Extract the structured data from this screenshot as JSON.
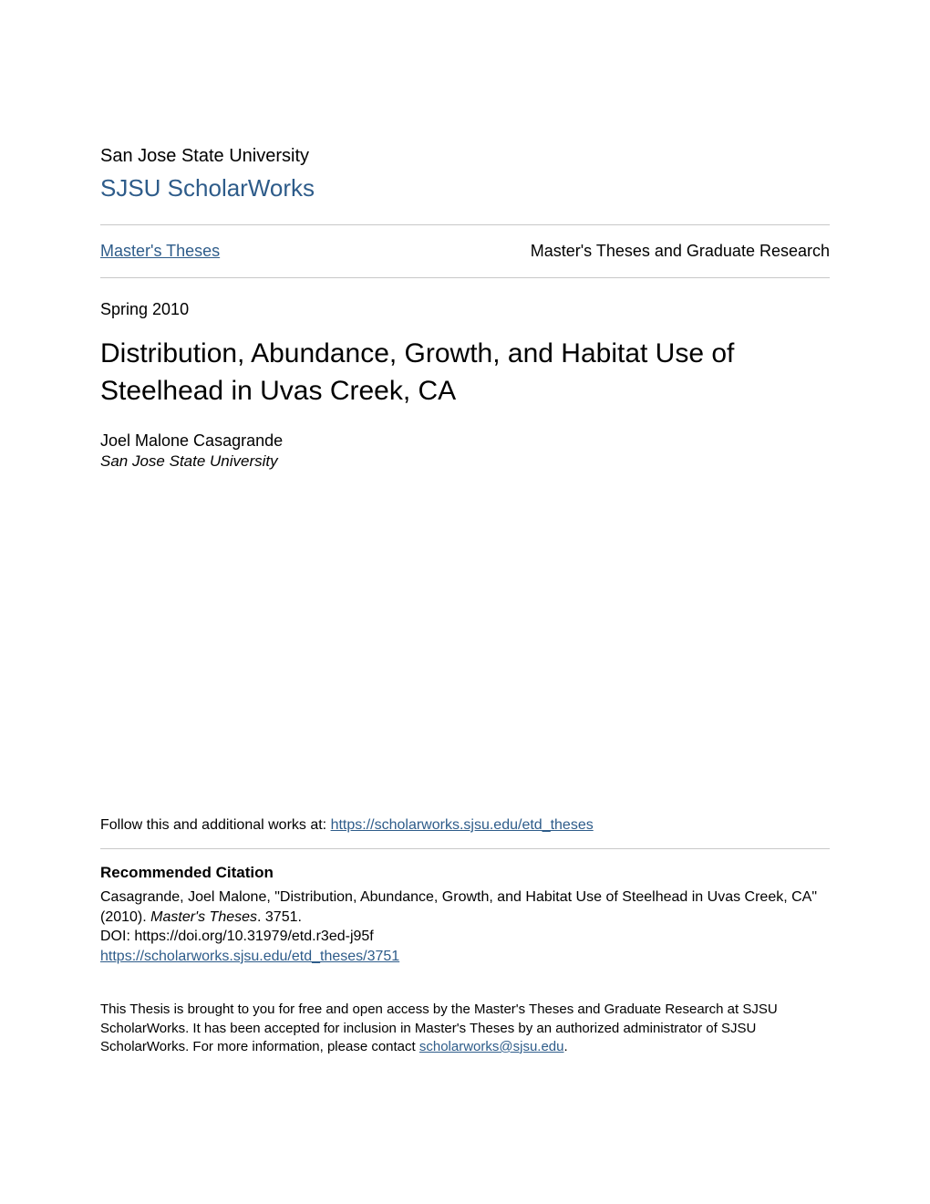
{
  "header": {
    "university": "San Jose State University",
    "repository": "SJSU ScholarWorks"
  },
  "breadcrumb": {
    "left": "Master's Theses",
    "right": "Master's Theses and Graduate Research"
  },
  "meta": {
    "date": "Spring 2010",
    "title": "Distribution, Abundance, Growth, and Habitat Use of Steelhead in Uvas Creek, CA",
    "author": "Joel Malone Casagrande",
    "affiliation": "San Jose State University"
  },
  "follow": {
    "prefix": "Follow this and additional works at: ",
    "url": "https://scholarworks.sjsu.edu/etd_theses"
  },
  "citation": {
    "heading": "Recommended Citation",
    "line1_pre": "Casagrande, Joel Malone, \"Distribution, Abundance, Growth, and Habitat Use of Steelhead in Uvas Creek, CA\" (2010). ",
    "line1_italic": "Master's Theses",
    "line1_post": ". 3751.",
    "doi": "DOI: https://doi.org/10.31979/etd.r3ed-j95f",
    "url": "https://scholarworks.sjsu.edu/etd_theses/3751"
  },
  "footer": {
    "text_pre": "This Thesis is brought to you for free and open access by the Master's Theses and Graduate Research at SJSU ScholarWorks. It has been accepted for inclusion in Master's Theses by an authorized administrator of SJSU ScholarWorks. For more information, please contact ",
    "email": "scholarworks@sjsu.edu",
    "text_post": "."
  },
  "colors": {
    "link": "#2e5c8a",
    "text": "#000000",
    "divider": "#c8c8c8",
    "background": "#ffffff"
  }
}
